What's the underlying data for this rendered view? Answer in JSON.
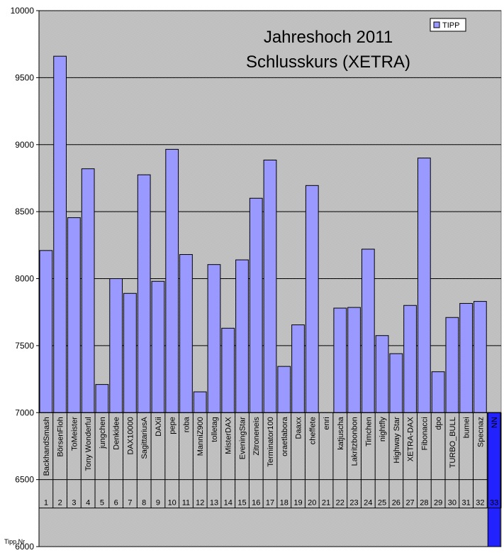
{
  "chart_data": {
    "type": "bar",
    "title": "Jahreshoch 2011",
    "subtitle": "Schlusskurs (XETRA)",
    "xlabel": "Tipp Nr",
    "ylabel": "",
    "ylim": [
      6000,
      10000
    ],
    "yticks": [
      6000,
      6500,
      7000,
      7500,
      8000,
      8500,
      9000,
      9500,
      10000
    ],
    "baseline": 7000,
    "grid": true,
    "legend_position": "top-right",
    "series": [
      {
        "name": "TIPP",
        "color": "#9999ff",
        "values": [
          8210,
          9660,
          8455,
          8820,
          7210,
          8000,
          7890,
          8775,
          7980,
          8965,
          8180,
          7155,
          8105,
          7630,
          8140,
          8600,
          8885,
          7345,
          7655,
          8695,
          null,
          7780,
          7785,
          8220,
          7575,
          7440,
          7800,
          8900,
          7305,
          7710,
          7815,
          7830,
          6000
        ]
      }
    ],
    "categories": [
      "BackhandSmash",
      "BörsenFloh",
      "ToMeister",
      "Tony Wonderful",
      "jungchen",
      "Denkidee",
      "DAX10000",
      "SagittariusA",
      "DAXii",
      "pepe",
      "roba",
      "ManniZ900",
      "tolletag",
      "MisterDAX",
      "EveningStar",
      "Zitroneneis",
      "Terminator100",
      "oraetlabora",
      "Daaxx",
      "cheffete",
      "enri",
      "katjuscha",
      "Lakritzbonbon",
      "Timchen",
      "nightfly",
      "Highway Star",
      "XETRA-DAX",
      "Fibonacci",
      "dpo",
      "TURBO_BULL",
      "bumei",
      "Specnaz",
      "NN"
    ],
    "numbers": [
      "1",
      "2",
      "3",
      "4",
      "5",
      "6",
      "7",
      "8",
      "9",
      "10",
      "11",
      "12",
      "13",
      "14",
      "15",
      "16",
      "17",
      "18",
      "19",
      "20",
      "21",
      "22",
      "23",
      "24",
      "25",
      "26",
      "27",
      "28",
      "29",
      "30",
      "31",
      "32",
      "33"
    ],
    "highlight_index": 32,
    "highlight_color": "#2222ff"
  }
}
